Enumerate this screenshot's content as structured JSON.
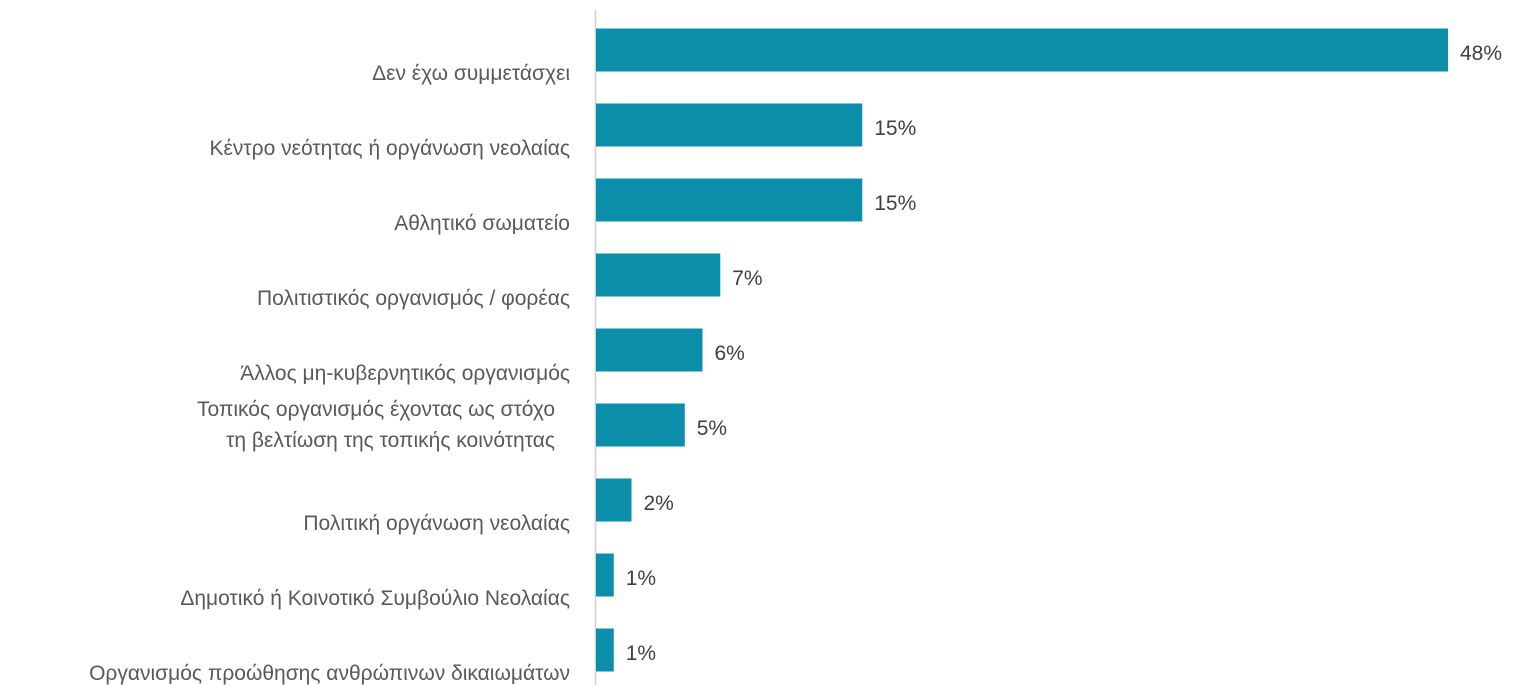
{
  "chart_data": {
    "type": "bar",
    "orientation": "horizontal",
    "categories": [
      "Δεν έχω συμμετάσχει",
      "Κέντρο νεότητας ή οργάνωση νεολαίας",
      "Αθλητικό σωματείο",
      "Πολιτιστικός οργανισμός / φορέας",
      "Άλλος μη-κυβερνητικός οργανισμός",
      "Τοπικός οργανισμός έχοντας ως στόχο\nτη βελτίωση της τοπικής κοινότητας",
      "Πολιτική οργάνωση νεολαίας",
      "Δημοτικό ή Κοινοτικό Συμβούλιο Νεολαίας",
      "Οργανισμός προώθησης ανθρώπινων δικαιωμάτων"
    ],
    "values": [
      48,
      15,
      15,
      7,
      6,
      5,
      2,
      1,
      1
    ],
    "value_labels": [
      "48%",
      "15%",
      "15%",
      "7%",
      "6%",
      "5%",
      "2%",
      "1%",
      "1%"
    ],
    "color": "#0a8ea9"
  }
}
